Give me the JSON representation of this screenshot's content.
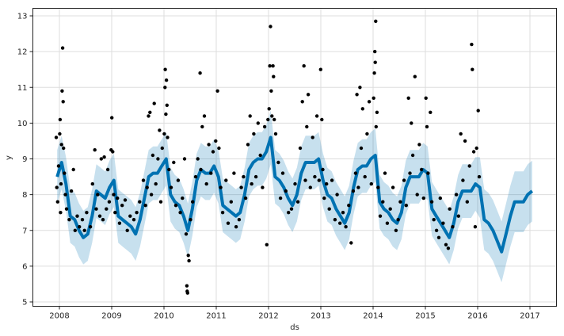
{
  "chart_data": {
    "type": "line",
    "title": "",
    "xlabel": "ds",
    "ylabel": "y",
    "xlim": [
      "2007-07-01",
      "2017-07-01"
    ],
    "ylim": [
      4.9,
      13.25
    ],
    "grid": true,
    "legend": "none",
    "x_ticks": [
      "2008",
      "2009",
      "2010",
      "2011",
      "2012",
      "2013",
      "2014",
      "2015",
      "2016",
      "2017"
    ],
    "y_ticks": [
      "5",
      "6",
      "7",
      "8",
      "9",
      "10",
      "11",
      "12",
      "13"
    ],
    "colors": {
      "forecast_line": "#0072B2",
      "interval_band": "#0072B2",
      "observed_points": "#000000",
      "grid": "#dddddd"
    },
    "forecast_monthly": [
      {
        "year": 2007,
        "yhat": [
          null,
          null,
          null,
          null,
          null,
          null,
          null,
          null,
          null,
          null,
          null,
          8.5
        ],
        "yhat_lower": [
          null,
          null,
          null,
          null,
          null,
          null,
          null,
          null,
          null,
          null,
          null,
          7.75
        ],
        "yhat_upper": [
          null,
          null,
          null,
          null,
          null,
          null,
          null,
          null,
          null,
          null,
          null,
          9.25
        ]
      },
      {
        "year": 2008,
        "yhat": [
          8.9,
          8.3,
          7.4,
          7.3,
          7.0,
          6.8,
          6.9,
          7.4,
          8.1,
          8.0,
          7.9,
          8.2
        ],
        "yhat_lower": [
          8.15,
          7.55,
          6.65,
          6.55,
          6.25,
          6.05,
          6.15,
          6.65,
          7.35,
          7.25,
          7.15,
          7.45
        ],
        "yhat_upper": [
          9.65,
          9.05,
          8.15,
          8.05,
          7.75,
          7.55,
          7.65,
          8.15,
          8.85,
          8.75,
          8.65,
          8.95
        ]
      },
      {
        "year": 2009,
        "yhat": [
          8.4,
          7.4,
          7.3,
          7.2,
          7.1,
          6.9,
          7.3,
          7.9,
          8.5,
          8.6,
          8.6,
          8.8
        ],
        "yhat_lower": [
          7.65,
          6.65,
          6.55,
          6.45,
          6.35,
          6.15,
          6.55,
          7.15,
          7.75,
          7.85,
          7.85,
          8.05
        ],
        "yhat_upper": [
          9.15,
          8.15,
          8.05,
          7.95,
          7.85,
          7.65,
          8.05,
          8.65,
          9.25,
          9.35,
          9.35,
          9.55
        ]
      },
      {
        "year": 2010,
        "yhat": [
          9.0,
          8.0,
          7.8,
          7.7,
          7.4,
          7.0,
          7.6,
          8.4,
          8.7,
          8.6,
          8.6,
          8.8
        ],
        "yhat_lower": [
          8.25,
          7.25,
          7.05,
          6.95,
          6.65,
          6.25,
          6.85,
          7.65,
          7.95,
          7.85,
          7.85,
          8.05
        ],
        "yhat_upper": [
          9.75,
          8.75,
          8.55,
          8.45,
          8.15,
          7.75,
          8.35,
          9.15,
          9.45,
          9.35,
          9.35,
          9.55
        ]
      },
      {
        "year": 2011,
        "yhat": [
          8.5,
          7.7,
          7.6,
          7.5,
          7.4,
          7.5,
          8.0,
          8.7,
          8.9,
          9.0,
          9.0,
          9.2
        ],
        "yhat_lower": [
          7.75,
          6.95,
          6.85,
          6.75,
          6.65,
          6.75,
          7.25,
          7.95,
          8.15,
          8.25,
          8.25,
          8.45
        ],
        "yhat_upper": [
          9.25,
          8.45,
          8.35,
          8.25,
          8.15,
          8.25,
          8.75,
          9.45,
          9.65,
          9.75,
          9.75,
          9.95
        ]
      },
      {
        "year": 2012,
        "yhat": [
          9.6,
          8.5,
          8.4,
          8.2,
          7.9,
          7.7,
          8.0,
          8.6,
          8.9,
          8.9,
          8.9,
          9.0
        ],
        "yhat_lower": [
          8.85,
          7.75,
          7.65,
          7.45,
          7.15,
          6.95,
          7.25,
          7.85,
          8.15,
          8.15,
          8.15,
          8.25
        ],
        "yhat_upper": [
          10.35,
          9.25,
          9.15,
          8.95,
          8.65,
          8.45,
          8.75,
          9.35,
          9.65,
          9.65,
          9.65,
          9.75
        ]
      },
      {
        "year": 2013,
        "yhat": [
          8.4,
          8.0,
          7.9,
          7.6,
          7.4,
          7.2,
          7.5,
          8.2,
          8.7,
          8.8,
          8.8,
          9.0
        ],
        "yhat_lower": [
          7.65,
          7.25,
          7.15,
          6.85,
          6.65,
          6.45,
          6.75,
          7.45,
          7.95,
          8.05,
          8.05,
          8.25
        ],
        "yhat_upper": [
          9.15,
          8.75,
          8.65,
          8.35,
          8.15,
          7.95,
          8.25,
          8.95,
          9.45,
          9.55,
          9.55,
          9.75
        ]
      },
      {
        "year": 2014,
        "yhat": [
          9.1,
          7.8,
          7.6,
          7.5,
          7.3,
          7.2,
          7.5,
          8.2,
          8.5,
          8.5,
          8.5,
          8.7
        ],
        "yhat_lower": [
          8.35,
          7.05,
          6.85,
          6.75,
          6.55,
          6.45,
          6.75,
          7.45,
          7.75,
          7.75,
          7.75,
          7.95
        ],
        "yhat_upper": [
          9.85,
          8.55,
          8.35,
          8.25,
          8.05,
          7.95,
          8.25,
          8.95,
          9.25,
          9.25,
          9.25,
          9.45
        ]
      },
      {
        "year": 2015,
        "yhat": [
          8.6,
          7.6,
          7.4,
          7.2,
          7.0,
          6.8,
          7.2,
          7.8,
          8.1,
          8.1,
          8.1,
          8.3
        ],
        "yhat_lower": [
          7.85,
          6.85,
          6.65,
          6.45,
          6.25,
          6.05,
          6.45,
          7.05,
          7.35,
          7.35,
          7.35,
          7.55
        ],
        "yhat_upper": [
          9.35,
          8.35,
          8.15,
          7.95,
          7.75,
          7.55,
          7.95,
          8.55,
          8.85,
          8.85,
          8.85,
          9.05
        ]
      },
      {
        "year": 2016,
        "yhat": [
          8.2,
          7.3,
          7.2,
          7.0,
          6.7,
          6.4,
          6.9,
          7.4,
          7.8,
          7.8,
          7.8,
          8.0
        ],
        "yhat_lower": [
          7.35,
          6.45,
          6.35,
          6.15,
          5.85,
          5.55,
          6.05,
          6.55,
          6.95,
          6.95,
          6.95,
          7.15
        ],
        "yhat_upper": [
          9.05,
          8.15,
          8.05,
          7.85,
          7.55,
          7.25,
          7.75,
          8.25,
          8.65,
          8.65,
          8.65,
          8.85
        ]
      },
      {
        "year": 2017,
        "yhat": [
          8.1
        ],
        "yhat_lower": [
          7.25
        ],
        "yhat_upper": [
          8.95
        ]
      }
    ],
    "observed": [
      [
        "2007-12-10",
        9.6
      ],
      [
        "2007-12-14",
        8.2
      ],
      [
        "2007-12-20",
        7.8
      ],
      [
        "2007-12-26",
        8.8
      ],
      [
        "2008-01-03",
        9.7
      ],
      [
        "2008-01-06",
        10.1
      ],
      [
        "2008-01-09",
        7.5
      ],
      [
        "2008-01-12",
        8.3
      ],
      [
        "2008-01-16",
        9.4
      ],
      [
        "2008-01-20",
        10.9
      ],
      [
        "2008-01-24",
        12.1
      ],
      [
        "2008-01-27",
        10.6
      ],
      [
        "2008-01-30",
        9.3
      ],
      [
        "2008-02-05",
        8.6
      ],
      [
        "2008-02-12",
        8.0
      ],
      [
        "2008-02-20",
        7.6
      ],
      [
        "2008-03-10",
        7.3
      ],
      [
        "2008-03-25",
        8.1
      ],
      [
        "2008-04-08",
        8.7
      ],
      [
        "2008-04-20",
        7.0
      ],
      [
        "2008-05-05",
        7.4
      ],
      [
        "2008-05-20",
        7.1
      ],
      [
        "2008-06-10",
        7.3
      ],
      [
        "2008-06-25",
        7.0
      ],
      [
        "2008-07-10",
        7.5
      ],
      [
        "2008-08-05",
        7.1
      ],
      [
        "2008-08-20",
        8.3
      ],
      [
        "2008-09-05",
        9.25
      ],
      [
        "2008-09-15",
        7.6
      ],
      [
        "2008-09-25",
        8.0
      ],
      [
        "2008-10-10",
        7.4
      ],
      [
        "2008-10-20",
        9.0
      ],
      [
        "2008-11-01",
        7.3
      ],
      [
        "2008-11-10",
        9.05
      ],
      [
        "2008-11-25",
        7.6
      ],
      [
        "2008-12-05",
        8.7
      ],
      [
        "2008-12-15",
        7.8
      ],
      [
        "2008-12-28",
        9.25
      ],
      [
        "2009-01-02",
        10.15
      ],
      [
        "2009-01-08",
        9.2
      ],
      [
        "2009-01-15",
        8.0
      ],
      [
        "2009-01-25",
        7.5
      ],
      [
        "2009-02-10",
        7.9
      ],
      [
        "2009-02-25",
        7.2
      ],
      [
        "2009-03-15",
        7.7
      ],
      [
        "2009-04-05",
        7.85
      ],
      [
        "2009-04-20",
        7.0
      ],
      [
        "2009-05-10",
        7.4
      ],
      [
        "2009-06-05",
        7.3
      ],
      [
        "2009-06-25",
        7.5
      ],
      [
        "2009-07-15",
        7.8
      ],
      [
        "2009-08-10",
        8.4
      ],
      [
        "2009-08-25",
        7.7
      ],
      [
        "2009-09-05",
        8.2
      ],
      [
        "2009-09-15",
        10.2
      ],
      [
        "2009-09-25",
        10.3
      ],
      [
        "2009-10-05",
        8.0
      ],
      [
        "2009-10-15",
        9.1
      ],
      [
        "2009-10-25",
        10.55
      ],
      [
        "2009-11-05",
        8.3
      ],
      [
        "2009-11-20",
        9.0
      ],
      [
        "2009-12-01",
        9.8
      ],
      [
        "2009-12-10",
        7.8
      ],
      [
        "2009-12-20",
        9.3
      ],
      [
        "2010-01-03",
        9.7
      ],
      [
        "2010-01-08",
        11.0
      ],
      [
        "2010-01-10",
        11.5
      ],
      [
        "2010-01-14",
        10.25
      ],
      [
        "2010-01-18",
        11.2
      ],
      [
        "2010-01-22",
        10.5
      ],
      [
        "2010-01-26",
        9.6
      ],
      [
        "2010-02-05",
        8.7
      ],
      [
        "2010-02-20",
        8.2
      ],
      [
        "2010-03-10",
        8.9
      ],
      [
        "2010-03-25",
        7.7
      ],
      [
        "2010-04-10",
        8.4
      ],
      [
        "2010-04-25",
        7.5
      ],
      [
        "2010-05-10",
        7.9
      ],
      [
        "2010-05-25",
        9.0
      ],
      [
        "2010-06-05",
        6.9
      ],
      [
        "2010-06-10",
        5.45
      ],
      [
        "2010-06-12",
        5.3
      ],
      [
        "2010-06-15",
        5.25
      ],
      [
        "2010-06-20",
        6.3
      ],
      [
        "2010-06-25",
        6.15
      ],
      [
        "2010-07-05",
        7.3
      ],
      [
        "2010-07-20",
        7.8
      ],
      [
        "2010-08-10",
        8.5
      ],
      [
        "2010-08-25",
        9.0
      ],
      [
        "2010-09-10",
        11.4
      ],
      [
        "2010-09-15",
        8.7
      ],
      [
        "2010-09-25",
        9.9
      ],
      [
        "2010-10-10",
        10.2
      ],
      [
        "2010-10-25",
        8.3
      ],
      [
        "2010-11-10",
        9.4
      ],
      [
        "2010-11-25",
        8.6
      ],
      [
        "2010-12-10",
        9.2
      ],
      [
        "2010-12-28",
        9.5
      ],
      [
        "2011-01-10",
        10.9
      ],
      [
        "2011-01-20",
        9.3
      ],
      [
        "2011-02-01",
        8.2
      ],
      [
        "2011-02-15",
        7.5
      ],
      [
        "2011-03-10",
        8.4
      ],
      [
        "2011-03-25",
        7.2
      ],
      [
        "2011-04-15",
        7.8
      ],
      [
        "2011-05-05",
        8.6
      ],
      [
        "2011-05-20",
        7.1
      ],
      [
        "2011-06-10",
        7.3
      ],
      [
        "2011-06-25",
        8.2
      ],
      [
        "2011-07-10",
        8.5
      ],
      [
        "2011-07-25",
        7.9
      ],
      [
        "2011-08-10",
        9.4
      ],
      [
        "2011-08-25",
        10.2
      ],
      [
        "2011-09-05",
        8.3
      ],
      [
        "2011-09-20",
        9.7
      ],
      [
        "2011-10-05",
        8.5
      ],
      [
        "2011-10-20",
        10.0
      ],
      [
        "2011-11-05",
        9.1
      ],
      [
        "2011-11-20",
        8.2
      ],
      [
        "2011-12-05",
        9.9
      ],
      [
        "2011-12-20",
        6.6
      ],
      [
        "2011-12-28",
        10.1
      ],
      [
        "2012-01-05",
        10.4
      ],
      [
        "2012-01-10",
        11.6
      ],
      [
        "2012-01-15",
        12.7
      ],
      [
        "2012-01-20",
        10.9
      ],
      [
        "2012-01-25",
        10.2
      ],
      [
        "2012-02-01",
        11.6
      ],
      [
        "2012-02-05",
        11.3
      ],
      [
        "2012-02-10",
        10.1
      ],
      [
        "2012-02-20",
        9.7
      ],
      [
        "2012-03-10",
        8.9
      ],
      [
        "2012-03-25",
        7.9
      ],
      [
        "2012-04-10",
        8.6
      ],
      [
        "2012-05-01",
        8.1
      ],
      [
        "2012-05-20",
        7.5
      ],
      [
        "2012-06-10",
        7.6
      ],
      [
        "2012-07-05",
        8.3
      ],
      [
        "2012-07-25",
        7.8
      ],
      [
        "2012-08-10",
        9.3
      ],
      [
        "2012-08-25",
        10.6
      ],
      [
        "2012-09-05",
        11.6
      ],
      [
        "2012-09-15",
        8.4
      ],
      [
        "2012-09-25",
        9.9
      ],
      [
        "2012-10-05",
        10.8
      ],
      [
        "2012-10-20",
        8.2
      ],
      [
        "2012-11-05",
        9.6
      ],
      [
        "2012-11-20",
        8.5
      ],
      [
        "2012-12-05",
        10.2
      ],
      [
        "2012-12-20",
        8.4
      ],
      [
        "2012-12-31",
        11.5
      ],
      [
        "2013-01-08",
        10.1
      ],
      [
        "2013-01-15",
        8.7
      ],
      [
        "2013-01-25",
        7.9
      ],
      [
        "2013-02-10",
        8.3
      ],
      [
        "2013-03-01",
        7.6
      ],
      [
        "2013-03-20",
        8.4
      ],
      [
        "2013-04-10",
        7.3
      ],
      [
        "2013-04-25",
        8.0
      ],
      [
        "2013-05-15",
        7.2
      ],
      [
        "2013-06-05",
        7.5
      ],
      [
        "2013-06-25",
        7.1
      ],
      [
        "2013-07-15",
        7.7
      ],
      [
        "2013-08-01",
        6.65
      ],
      [
        "2013-08-15",
        8.1
      ],
      [
        "2013-09-01",
        8.6
      ],
      [
        "2013-09-10",
        10.8
      ],
      [
        "2013-09-20",
        8.2
      ],
      [
        "2013-10-01",
        11.0
      ],
      [
        "2013-10-10",
        9.3
      ],
      [
        "2013-10-20",
        10.4
      ],
      [
        "2013-11-05",
        8.5
      ],
      [
        "2013-11-20",
        9.7
      ],
      [
        "2013-12-05",
        10.6
      ],
      [
        "2013-12-20",
        8.3
      ],
      [
        "2014-01-05",
        10.7
      ],
      [
        "2014-01-10",
        11.4
      ],
      [
        "2014-01-13",
        12.0
      ],
      [
        "2014-01-16",
        11.7
      ],
      [
        "2014-01-19",
        12.85
      ],
      [
        "2014-01-22",
        9.9
      ],
      [
        "2014-01-28",
        10.3
      ],
      [
        "2014-02-05",
        8.2
      ],
      [
        "2014-02-20",
        7.4
      ],
      [
        "2014-03-10",
        7.8
      ],
      [
        "2014-03-25",
        8.6
      ],
      [
        "2014-04-10",
        7.2
      ],
      [
        "2014-05-01",
        7.6
      ],
      [
        "2014-05-20",
        8.2
      ],
      [
        "2014-06-10",
        7.0
      ],
      [
        "2014-06-25",
        7.3
      ],
      [
        "2014-07-10",
        7.8
      ],
      [
        "2014-08-05",
        8.4
      ],
      [
        "2014-08-20",
        7.7
      ],
      [
        "2014-09-05",
        10.7
      ],
      [
        "2014-09-15",
        8.6
      ],
      [
        "2014-09-25",
        10.0
      ],
      [
        "2014-10-05",
        9.1
      ],
      [
        "2014-10-20",
        11.3
      ],
      [
        "2014-11-05",
        8.0
      ],
      [
        "2014-11-20",
        9.4
      ],
      [
        "2014-12-05",
        8.7
      ],
      [
        "2014-12-20",
        7.9
      ],
      [
        "2015-01-05",
        10.7
      ],
      [
        "2015-01-12",
        9.9
      ],
      [
        "2015-01-20",
        8.6
      ],
      [
        "2015-02-05",
        10.3
      ],
      [
        "2015-02-15",
        7.8
      ],
      [
        "2015-03-01",
        7.3
      ],
      [
        "2015-03-20",
        7.0
      ],
      [
        "2015-04-05",
        6.8
      ],
      [
        "2015-04-15",
        7.9
      ],
      [
        "2015-05-05",
        7.2
      ],
      [
        "2015-05-25",
        6.6
      ],
      [
        "2015-06-10",
        6.5
      ],
      [
        "2015-06-20",
        7.6
      ],
      [
        "2015-07-10",
        7.1
      ],
      [
        "2015-08-05",
        8.0
      ],
      [
        "2015-08-20",
        7.4
      ],
      [
        "2015-09-05",
        9.7
      ],
      [
        "2015-09-20",
        8.4
      ],
      [
        "2015-10-05",
        9.5
      ],
      [
        "2015-10-20",
        7.8
      ],
      [
        "2015-11-05",
        8.8
      ],
      [
        "2015-11-20",
        12.2
      ],
      [
        "2015-11-25",
        11.5
      ],
      [
        "2015-12-05",
        9.2
      ],
      [
        "2015-12-15",
        7.1
      ],
      [
        "2015-12-25",
        9.3
      ],
      [
        "2016-01-05",
        10.35
      ],
      [
        "2016-01-12",
        8.5
      ]
    ]
  }
}
